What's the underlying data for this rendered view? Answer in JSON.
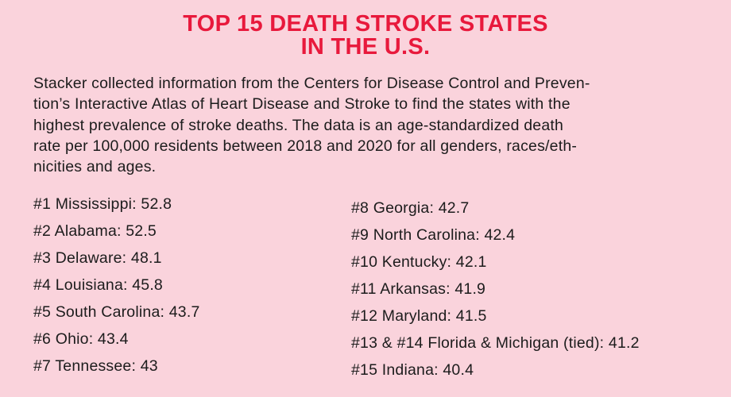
{
  "title": {
    "line1": "TOP 15 DEATH STROKE STATES",
    "line2": "IN THE U.S."
  },
  "intro_lines": [
    "Stacker collected information from the Centers for Disease Control and Preven-",
    "tion’s Interactive Atlas of Heart Disease and Stroke to find the states with the",
    "highest prevalence of stroke deaths. The data is an age-standardized death",
    "rate per 100,000 residents between 2018 and 2020 for all genders, races/eth-",
    "nicities and ages."
  ],
  "left_list": [
    "#1 Mississippi: 52.8",
    "#2 Alabama: 52.5",
    "#3 Delaware: 48.1",
    "#4 Louisiana: 45.8",
    "#5 South Carolina: 43.7",
    "#6 Ohio: 43.4",
    "#7 Tennessee: 43"
  ],
  "right_list": [
    "#8 Georgia: 42.7",
    "#9 North Carolina: 42.4",
    "#10 Kentucky: 42.1",
    "#11 Arkansas: 41.9",
    "#12 Maryland: 41.5",
    "#13 & #14 Florida & Michigan (tied): 41.2",
    "#15 Indiana: 40.4"
  ],
  "colors": {
    "background": "#fad3dc",
    "title": "#e8193c",
    "text": "#1c1c1c"
  }
}
